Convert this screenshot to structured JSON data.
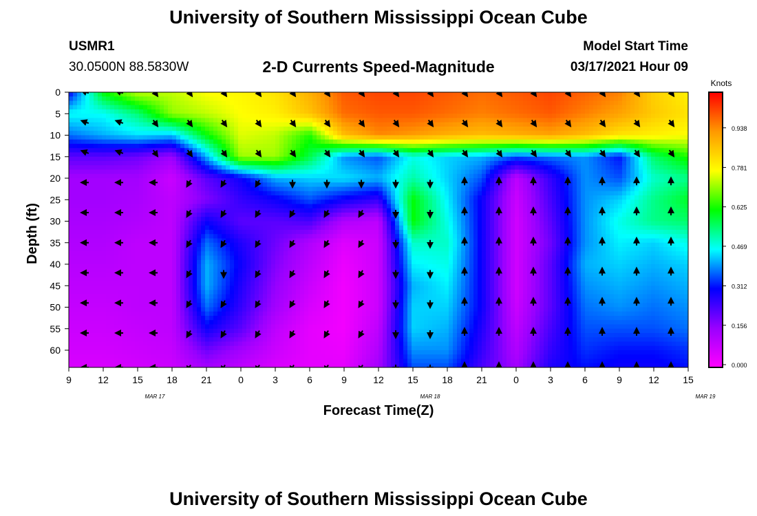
{
  "page": {
    "title": "University of Southern Mississippi Ocean Cube",
    "footer_title": "University of Southern Mississippi Ocean Cube",
    "station_id": "USMR1",
    "station_coords": "30.0500N 88.5830W",
    "subtitle": "2-D Currents Speed-Magnitude",
    "model_start_label": "Model Start Time",
    "model_start_value": "03/17/2021 Hour 09"
  },
  "chart_data": {
    "type": "heatmap",
    "xlabel": "Forecast Time(Z)",
    "ylabel": "Depth (ft)",
    "x_tick_labels": [
      "9",
      "12",
      "15",
      "18",
      "21",
      "0",
      "3",
      "6",
      "9",
      "12",
      "15",
      "18",
      "21",
      "0",
      "3",
      "6",
      "9",
      "12",
      "15"
    ],
    "date_labels": [
      "MAR 17",
      "MAR 18",
      "MAR 19"
    ],
    "y_tick_labels": [
      "0",
      "5",
      "10",
      "15",
      "20",
      "25",
      "30",
      "35",
      "40",
      "45",
      "50",
      "55",
      "60"
    ],
    "y_range": [
      0,
      64
    ],
    "colorbar": {
      "unit": "Knots",
      "tick_labels": [
        "0.000",
        "0.156",
        "0.312",
        "0.469",
        "0.625",
        "0.781",
        "0.938"
      ],
      "range": [
        0,
        1.09
      ],
      "colors": [
        "#ff00ff",
        "#9900ff",
        "#0000ff",
        "#00ffff",
        "#00ff00",
        "#ffff00",
        "#ff9900",
        "#ff0000"
      ]
    },
    "time_hours": [
      0,
      3,
      6,
      9,
      12,
      15,
      18,
      21,
      24,
      27,
      30,
      33,
      36,
      39,
      42,
      45,
      48,
      51,
      54
    ],
    "depths_ft": [
      0,
      5,
      10,
      15,
      20,
      25,
      30,
      35,
      40,
      45,
      50,
      55,
      60,
      64
    ],
    "speed_knots": [
      [
        0.3,
        0.62,
        0.74,
        0.74,
        0.78,
        0.79,
        0.82,
        0.9,
        1.0,
        1.02,
        1.02,
        1.0,
        0.98,
        1.0,
        1.02,
        0.99,
        0.96,
        0.85,
        0.8
      ],
      [
        0.47,
        0.47,
        0.55,
        0.71,
        0.74,
        0.78,
        0.8,
        0.87,
        0.98,
        1.0,
        1.0,
        0.98,
        0.96,
        0.98,
        1.0,
        0.96,
        0.92,
        0.86,
        0.82
      ],
      [
        0.38,
        0.42,
        0.45,
        0.43,
        0.62,
        0.76,
        0.74,
        0.64,
        0.88,
        0.95,
        0.93,
        0.9,
        0.88,
        0.9,
        0.92,
        0.88,
        0.82,
        0.8,
        0.78
      ],
      [
        0.22,
        0.22,
        0.2,
        0.15,
        0.42,
        0.72,
        0.72,
        0.58,
        0.4,
        0.36,
        0.48,
        0.44,
        0.42,
        0.36,
        0.38,
        0.4,
        0.32,
        0.56,
        0.64
      ],
      [
        0.14,
        0.14,
        0.14,
        0.08,
        0.22,
        0.3,
        0.42,
        0.44,
        0.45,
        0.42,
        0.52,
        0.44,
        0.36,
        0.1,
        0.26,
        0.4,
        0.36,
        0.5,
        0.54
      ],
      [
        0.14,
        0.14,
        0.13,
        0.1,
        0.18,
        0.26,
        0.3,
        0.36,
        0.3,
        0.26,
        0.62,
        0.46,
        0.3,
        0.08,
        0.24,
        0.4,
        0.44,
        0.54,
        0.6
      ],
      [
        0.13,
        0.13,
        0.12,
        0.1,
        0.3,
        0.22,
        0.22,
        0.24,
        0.12,
        0.1,
        0.62,
        0.48,
        0.3,
        0.07,
        0.22,
        0.4,
        0.48,
        0.54,
        0.56
      ],
      [
        0.12,
        0.12,
        0.1,
        0.1,
        0.38,
        0.28,
        0.2,
        0.12,
        0.05,
        0.08,
        0.5,
        0.5,
        0.3,
        0.07,
        0.2,
        0.4,
        0.46,
        0.44,
        0.48
      ],
      [
        0.11,
        0.11,
        0.1,
        0.1,
        0.42,
        0.3,
        0.18,
        0.1,
        0.03,
        0.08,
        0.46,
        0.48,
        0.3,
        0.07,
        0.22,
        0.42,
        0.44,
        0.42,
        0.44
      ],
      [
        0.1,
        0.1,
        0.1,
        0.1,
        0.42,
        0.28,
        0.16,
        0.08,
        0.02,
        0.08,
        0.42,
        0.46,
        0.3,
        0.07,
        0.22,
        0.4,
        0.42,
        0.4,
        0.42
      ],
      [
        0.09,
        0.09,
        0.1,
        0.1,
        0.38,
        0.26,
        0.14,
        0.06,
        0.02,
        0.08,
        0.44,
        0.44,
        0.3,
        0.08,
        0.22,
        0.38,
        0.4,
        0.38,
        0.4
      ],
      [
        0.08,
        0.08,
        0.09,
        0.1,
        0.3,
        0.22,
        0.1,
        0.04,
        0.02,
        0.1,
        0.44,
        0.42,
        0.28,
        0.1,
        0.24,
        0.36,
        0.36,
        0.36,
        0.38
      ],
      [
        0.07,
        0.07,
        0.08,
        0.09,
        0.2,
        0.14,
        0.08,
        0.04,
        0.03,
        0.12,
        0.4,
        0.4,
        0.26,
        0.12,
        0.26,
        0.34,
        0.32,
        0.32,
        0.34
      ],
      [
        0.06,
        0.06,
        0.07,
        0.08,
        0.14,
        0.1,
        0.06,
        0.04,
        0.04,
        0.14,
        0.36,
        0.36,
        0.24,
        0.14,
        0.28,
        0.32,
        0.3,
        0.3,
        0.32
      ]
    ]
  }
}
